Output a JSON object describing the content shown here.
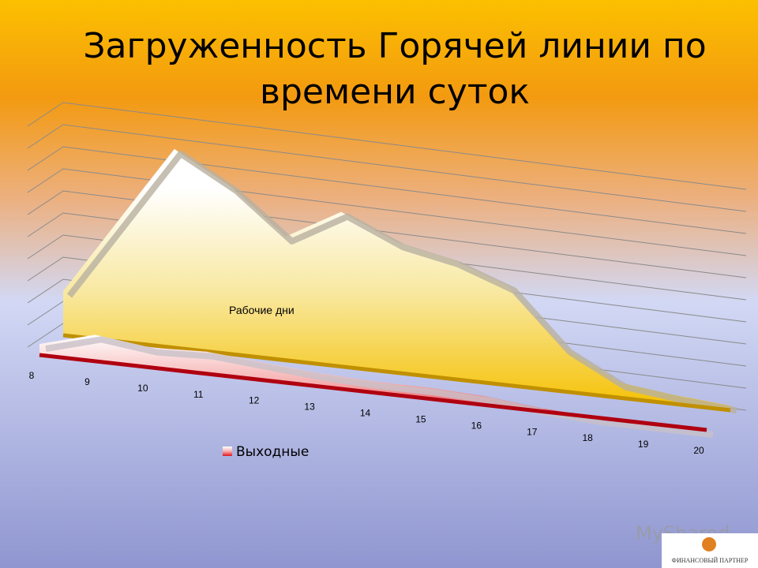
{
  "chart_data": {
    "type": "area3d",
    "title": "Загруженность Горячей линии по времени суток",
    "categories": [
      "8",
      "9",
      "10",
      "11",
      "12",
      "13",
      "14",
      "15",
      "16",
      "17",
      "18",
      "19",
      "20"
    ],
    "series": [
      {
        "name": "Рабочие дни",
        "color": "#f5c000",
        "values": [
          2,
          5.5,
          9,
          7.6,
          5.6,
          7,
          5.9,
          5.4,
          4.5,
          2,
          0.7,
          0.4,
          0.2
        ]
      },
      {
        "name": "Выходные",
        "color": "#e0141e",
        "values": [
          0.5,
          1.2,
          0.9,
          1,
          0.8,
          0.6,
          0.5,
          0.5,
          0.4,
          0.15,
          0,
          0,
          0
        ]
      }
    ],
    "ylim": [
      0,
      10
    ],
    "grid": true,
    "legend": "bottom-left"
  },
  "watermark": "MyShared",
  "logo": "ФИНАНСОВЫЙ ПАРТНЕР"
}
